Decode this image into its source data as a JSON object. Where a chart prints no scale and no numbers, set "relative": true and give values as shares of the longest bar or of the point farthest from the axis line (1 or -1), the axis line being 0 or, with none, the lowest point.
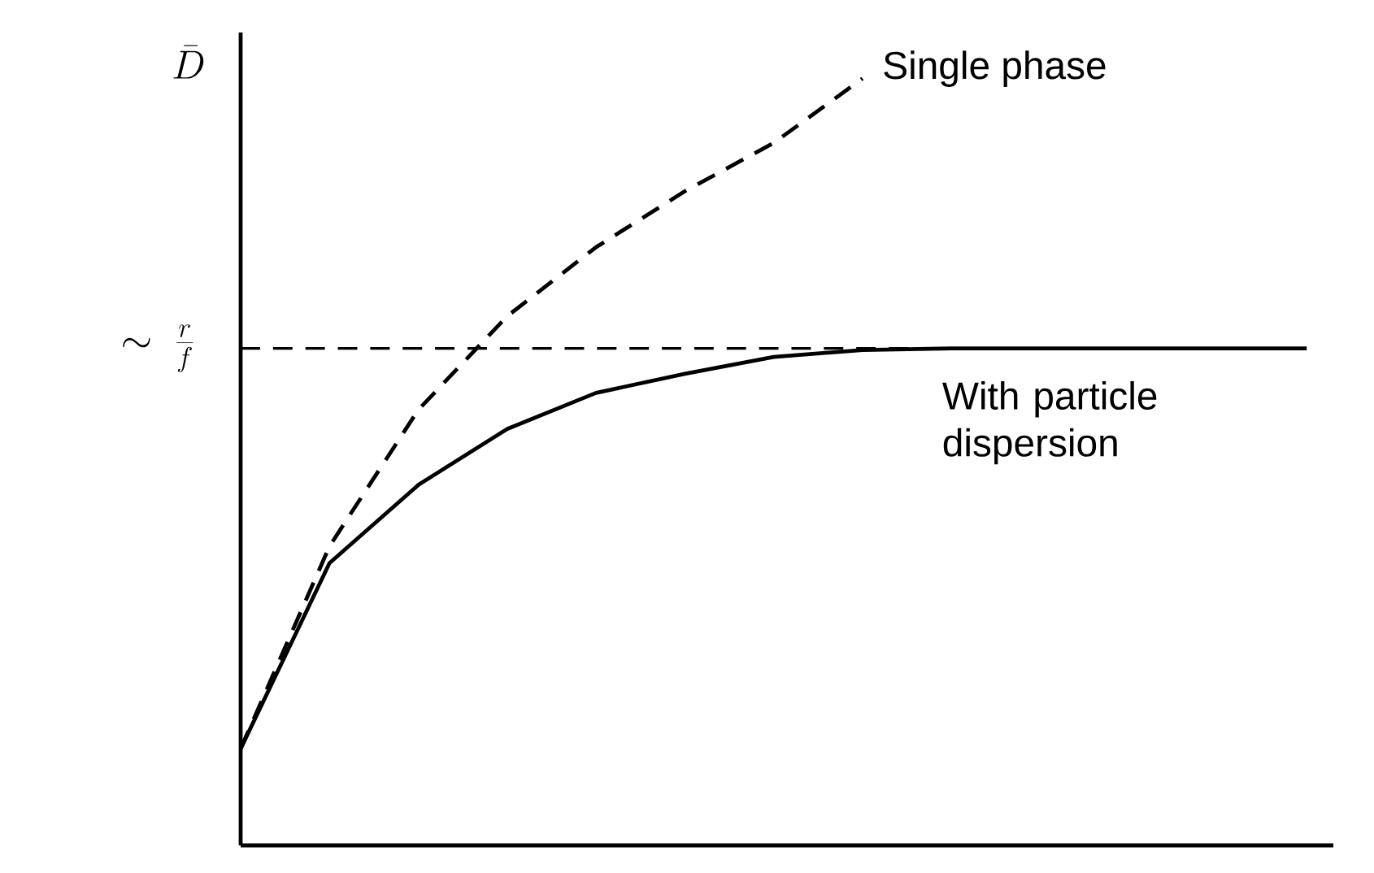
{
  "chart_data": {
    "type": "line",
    "relative": true,
    "ylabel": "\\bar{D}",
    "categories": [
      null,
      null,
      null,
      null,
      null,
      null,
      null,
      null,
      null,
      null,
      null,
      null,
      null
    ],
    "series": [
      {
        "name": "Single phase",
        "color": "#000000",
        "line_style": "dashed",
        "values": [
          0.126,
          0.39,
          0.568,
          0.69,
          0.78,
          0.853,
          0.916,
          1.0,
          null,
          null,
          null,
          null,
          null
        ]
      },
      {
        "name": "With particle dispersion",
        "color": "#000000",
        "line_style": "solid",
        "values": [
          0.126,
          0.368,
          0.47,
          0.543,
          0.59,
          0.615,
          0.637,
          0.646,
          0.648,
          0.648,
          0.648,
          0.648,
          0.648
        ]
      }
    ],
    "ref_lines": [
      {
        "axis": "y",
        "value": 0.648,
        "label": "\\sim\\;\\frac{r}{f}",
        "line_style": "dashed"
      }
    ]
  }
}
